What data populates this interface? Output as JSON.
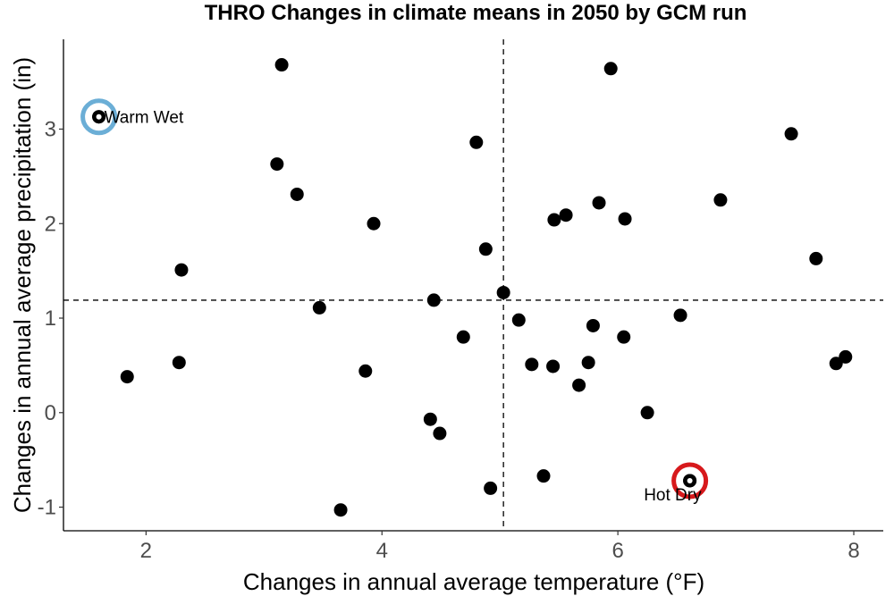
{
  "chart_data": {
    "type": "scatter",
    "title": "THRO Changes in climate means in 2050 by GCM run",
    "xlabel": "Changes in annual average temperature (°F)",
    "ylabel": "Changes in annual average precipitation (in)",
    "xlim": [
      1.3,
      8.25
    ],
    "ylim": [
      -1.25,
      3.95
    ],
    "xticks": [
      2,
      4,
      6,
      8
    ],
    "yticks": [
      -1,
      0,
      1,
      2,
      3
    ],
    "grid": false,
    "reference_lines": {
      "x": 5.03,
      "y": 1.19
    },
    "points": [
      {
        "x": 1.6,
        "y": 3.13
      },
      {
        "x": 1.84,
        "y": 0.38
      },
      {
        "x": 2.28,
        "y": 0.53
      },
      {
        "x": 2.3,
        "y": 1.51
      },
      {
        "x": 3.11,
        "y": 2.63
      },
      {
        "x": 3.15,
        "y": 3.68
      },
      {
        "x": 3.28,
        "y": 2.31
      },
      {
        "x": 3.47,
        "y": 1.11
      },
      {
        "x": 3.65,
        "y": -1.03
      },
      {
        "x": 3.86,
        "y": 0.44
      },
      {
        "x": 3.93,
        "y": 2.0
      },
      {
        "x": 4.41,
        "y": -0.07
      },
      {
        "x": 4.44,
        "y": 1.19
      },
      {
        "x": 4.49,
        "y": -0.22
      },
      {
        "x": 4.69,
        "y": 0.8
      },
      {
        "x": 4.8,
        "y": 2.86
      },
      {
        "x": 4.88,
        "y": 1.73
      },
      {
        "x": 4.92,
        "y": -0.8
      },
      {
        "x": 5.03,
        "y": 1.27
      },
      {
        "x": 5.16,
        "y": 0.98
      },
      {
        "x": 5.27,
        "y": 0.51
      },
      {
        "x": 5.37,
        "y": -0.67
      },
      {
        "x": 5.45,
        "y": 0.49
      },
      {
        "x": 5.46,
        "y": 2.04
      },
      {
        "x": 5.56,
        "y": 2.09
      },
      {
        "x": 5.67,
        "y": 0.29
      },
      {
        "x": 5.75,
        "y": 0.53
      },
      {
        "x": 5.79,
        "y": 0.92
      },
      {
        "x": 5.84,
        "y": 2.22
      },
      {
        "x": 5.94,
        "y": 3.64
      },
      {
        "x": 6.05,
        "y": 0.8
      },
      {
        "x": 6.06,
        "y": 2.05
      },
      {
        "x": 6.25,
        "y": 0.0
      },
      {
        "x": 6.53,
        "y": 1.03
      },
      {
        "x": 6.61,
        "y": -0.72
      },
      {
        "x": 6.87,
        "y": 2.25
      },
      {
        "x": 7.47,
        "y": 2.95
      },
      {
        "x": 7.68,
        "y": 1.63
      },
      {
        "x": 7.85,
        "y": 0.52
      },
      {
        "x": 7.93,
        "y": 0.59
      }
    ],
    "highlights": [
      {
        "label": "Warm Wet",
        "x": 1.6,
        "y": 3.13,
        "color": "#6BAED6"
      },
      {
        "label": "Hot Dry",
        "x": 6.61,
        "y": -0.72,
        "color": "#D7191C"
      }
    ]
  }
}
